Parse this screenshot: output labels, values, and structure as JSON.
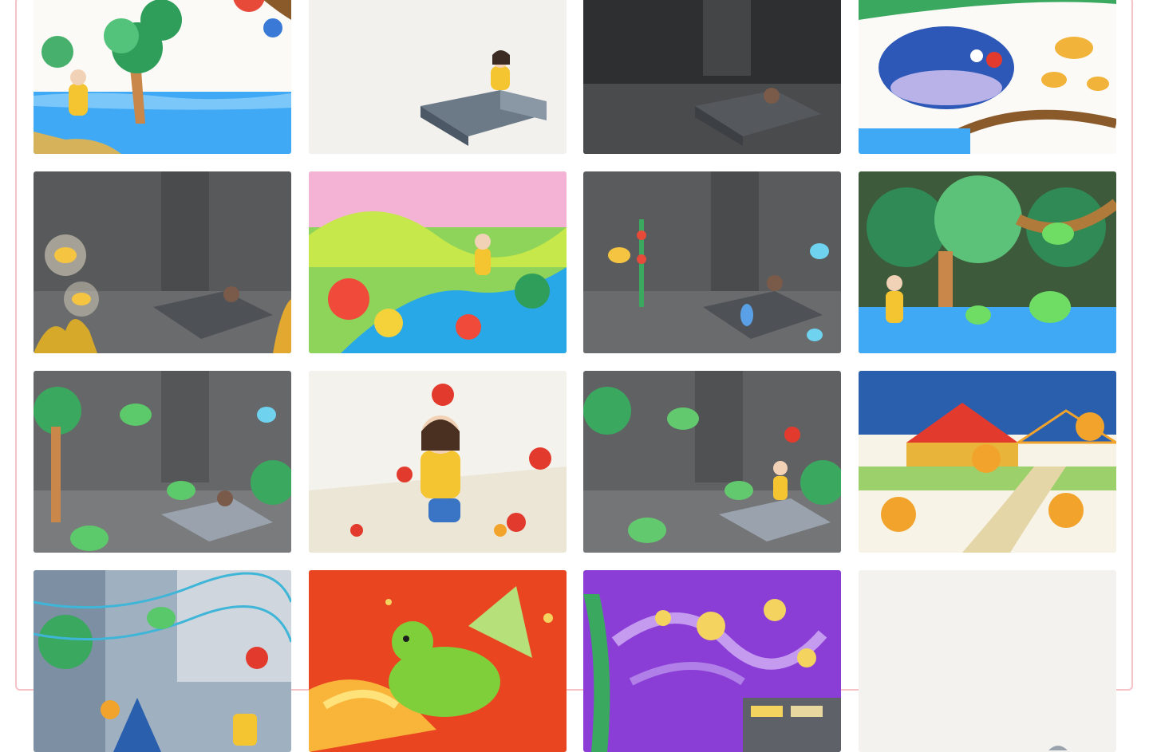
{
  "gallery": {
    "items": [
      {
        "scene": "girl-by-lake-palms",
        "icon": "illustration-lake-icon",
        "colors": {
          "bg": "#fbfaf7",
          "accent": "#3fa9f5"
        }
      },
      {
        "scene": "girl-making-bed-day",
        "icon": "illustration-bed-day-icon",
        "colors": {
          "bg": "#f3f1ee",
          "accent": "#5c6b7a"
        }
      },
      {
        "scene": "girl-sleeping-dark-room",
        "icon": "illustration-bed-night-icon",
        "colors": {
          "bg": "#3b3c3e",
          "accent": "#2a2b2d"
        }
      },
      {
        "scene": "whale-and-fish-underwater",
        "icon": "illustration-whale-icon",
        "colors": {
          "bg": "#fbfaf7",
          "accent": "#2d58b8"
        }
      },
      {
        "scene": "dark-room-glowing-fish",
        "icon": "illustration-glow-fish-icon",
        "colors": {
          "bg": "#58595b",
          "accent": "#f5c542"
        }
      },
      {
        "scene": "girl-at-colorful-stream",
        "icon": "illustration-stream-icon",
        "colors": {
          "bg": "#8fd45a",
          "accent": "#29a8e8"
        }
      },
      {
        "scene": "dark-room-jellyfish",
        "icon": "illustration-jellyfish-icon",
        "colors": {
          "bg": "#5a5b5d",
          "accent": "#6fd3f0"
        }
      },
      {
        "scene": "frogs-in-jungle",
        "icon": "illustration-frogs-icon",
        "colors": {
          "bg": "#3d5a3a",
          "accent": "#6fdc64"
        }
      },
      {
        "scene": "room-filled-with-jungle",
        "icon": "illustration-room-jungle-icon",
        "colors": {
          "bg": "#666769",
          "accent": "#5cc96a"
        }
      },
      {
        "scene": "girl-with-ladybugs",
        "icon": "illustration-ladybugs-icon",
        "colors": {
          "bg": "#f4f2ec",
          "accent": "#e23b2e"
        }
      },
      {
        "scene": "room-jungle-girl-awake",
        "icon": "illustration-room-awake-icon",
        "colors": {
          "bg": "#606163",
          "accent": "#63c96e"
        }
      },
      {
        "scene": "monkeys-at-circus",
        "icon": "illustration-circus-icon",
        "colors": {
          "bg": "#2a5fae",
          "accent": "#f2a32c"
        }
      },
      {
        "scene": "room-with-lights-and-frogs",
        "icon": "illustration-lights-icon",
        "colors": {
          "bg": "#7d8fa3",
          "accent": "#58c86a"
        }
      },
      {
        "scene": "green-dragon-red-sky",
        "icon": "illustration-dragon-icon",
        "colors": {
          "bg": "#e8361f",
          "accent": "#7fcf3a"
        }
      },
      {
        "scene": "starry-night-swirls",
        "icon": "illustration-starry-night-icon",
        "colors": {
          "bg": "#8a3ed6",
          "accent": "#f4d35e"
        }
      },
      {
        "scene": "blank-paper-sketch",
        "icon": "illustration-blank-icon",
        "colors": {
          "bg": "#f4f2ef",
          "accent": "#9aa3ad"
        }
      }
    ]
  }
}
